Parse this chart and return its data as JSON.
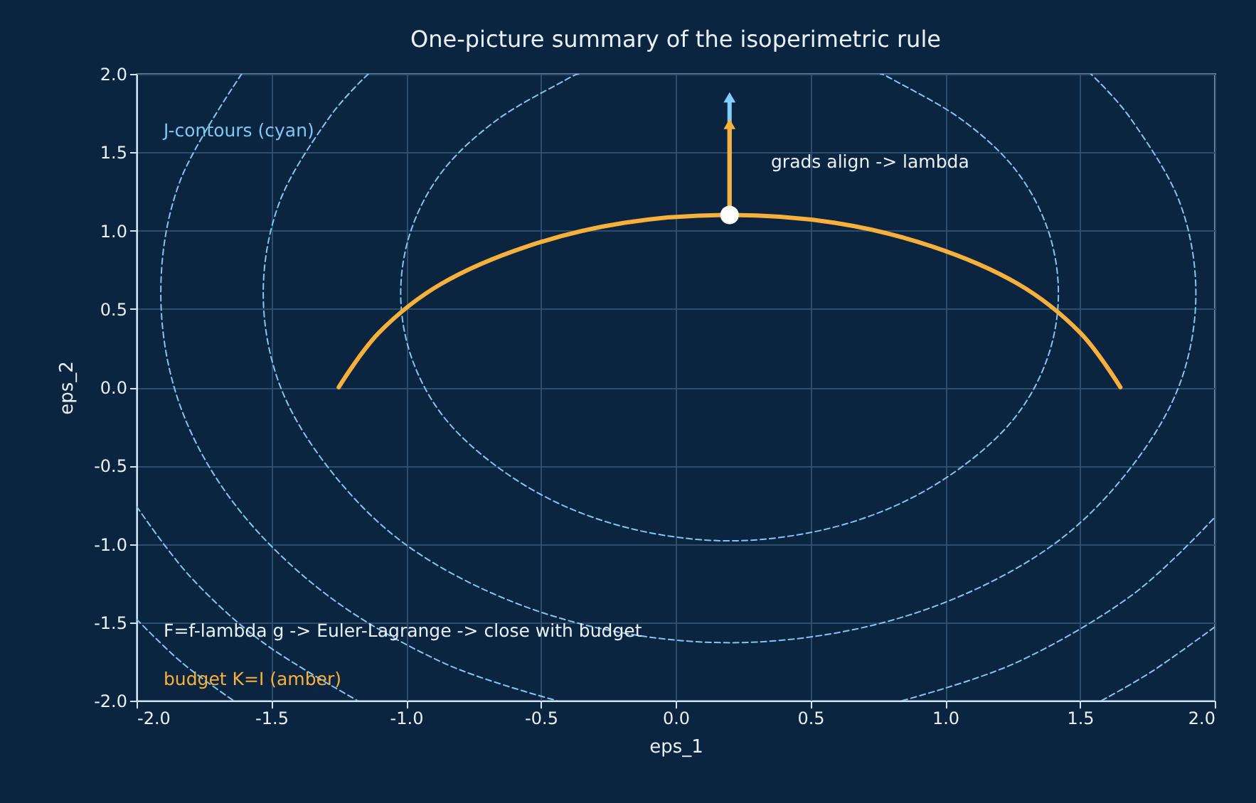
{
  "chart_data": {
    "type": "line",
    "title": "One-picture summary of the isoperimetric rule",
    "xlabel": "eps_1",
    "ylabel": "eps_2",
    "xlim": [
      -2,
      2
    ],
    "ylim": [
      -2,
      2
    ],
    "xticks": [
      {
        "value": -2,
        "label": "-2.0"
      },
      {
        "value": -1.5,
        "label": "-1.5"
      },
      {
        "value": -1,
        "label": "-1.0"
      },
      {
        "value": -0.5,
        "label": "-0.5"
      },
      {
        "value": 0,
        "label": "0.0"
      },
      {
        "value": 0.5,
        "label": "0.5"
      },
      {
        "value": 1,
        "label": "1.0"
      },
      {
        "value": 1.5,
        "label": "1.5"
      },
      {
        "value": 2,
        "label": "2.0"
      }
    ],
    "yticks": [
      {
        "value": -2,
        "label": "-2.0"
      },
      {
        "value": -1.5,
        "label": "-1.5"
      },
      {
        "value": -1,
        "label": "-1.0"
      },
      {
        "value": -0.5,
        "label": "-0.5"
      },
      {
        "value": 0,
        "label": "0.0"
      },
      {
        "value": 0.5,
        "label": "0.5"
      },
      {
        "value": 1,
        "label": "1.0"
      },
      {
        "value": 1.5,
        "label": "1.5"
      },
      {
        "value": 2,
        "label": "2.0"
      }
    ],
    "grid": true,
    "annotations": [
      "J-contours (cyan)",
      "grads align -> lambda",
      "F=f-lambda g  ->  Euler-Lagrange  ->  close with budget",
      "budget K=I (amber)"
    ],
    "series": [
      {
        "line_style": "dashed",
        "color": "#7ec8f2",
        "x": [
          -0.36,
          -0.41,
          -0.66,
          -0.86,
          -0.98,
          -1.02,
          -0.98,
          -0.86,
          -0.66,
          -0.41,
          -0.12,
          0.2,
          0.52,
          0.81,
          1.06,
          1.26,
          1.38,
          1.42,
          1.38,
          1.26,
          1.06,
          0.81,
          0.76
        ],
        "values": [
          2.0,
          1.96,
          1.71,
          1.39,
          1.01,
          0.6,
          0.19,
          -0.19,
          -0.51,
          -0.76,
          -0.92,
          -0.98,
          -0.92,
          -0.76,
          -0.51,
          -0.19,
          0.19,
          0.6,
          1.01,
          1.39,
          1.71,
          1.96,
          2.0
        ]
      },
      {
        "line_style": "dashed",
        "color": "#7ec8f2",
        "x": [
          -1.14,
          -1.29,
          -1.47,
          -1.53,
          -1.47,
          -1.29,
          -1.02,
          -0.66,
          -0.25,
          0.2,
          0.65,
          1.06,
          1.42,
          1.69,
          1.87,
          1.93,
          1.87,
          1.69,
          1.54
        ],
        "values": [
          2.0,
          1.71,
          1.18,
          0.6,
          0.02,
          -0.51,
          -0.98,
          -1.33,
          -1.55,
          -1.63,
          -1.55,
          -1.33,
          -0.98,
          -0.51,
          0.02,
          0.6,
          1.18,
          1.71,
          2.0
        ]
      },
      {
        "line_style": "dashed",
        "color": "#7ec8f2",
        "x": [
          -1.61,
          -1.84,
          -1.91,
          -1.84,
          -1.63,
          -1.29,
          -0.86,
          -0.44
        ],
        "values": [
          2.0,
          1.31,
          0.6,
          -0.11,
          -0.76,
          -1.33,
          -1.76,
          -2.0
        ]
      },
      {
        "line_style": "dashed",
        "color": "#7ec8f2",
        "x": [
          0.84,
          1.26,
          1.69,
          2.0
        ],
        "values": [
          -2.0,
          -1.76,
          -1.33,
          -0.83
        ]
      },
      {
        "line_style": "dashed",
        "color": "#7ec8f2",
        "x": [
          -2.0,
          -1.8,
          -1.53,
          -1.18
        ],
        "values": [
          -0.76,
          -1.21,
          -1.63,
          -2.0
        ]
      },
      {
        "line_style": "dashed",
        "color": "#7ec8f2",
        "x": [
          1.58,
          1.77,
          2.0
        ],
        "values": [
          -2.0,
          -1.81,
          -1.53
        ]
      },
      {
        "line_style": "dashed",
        "color": "#7ec8f2",
        "x": [
          -2.0,
          -1.83,
          -1.64
        ],
        "values": [
          -1.48,
          -1.76,
          -2.0
        ]
      },
      {
        "line_style": "solid",
        "color": "#f7b03c",
        "x": [
          -1.25,
          -1.1,
          -0.87,
          -0.55,
          -0.19,
          0.2,
          0.59,
          0.95,
          1.27,
          1.5,
          1.65
        ],
        "values": [
          0.0,
          0.35,
          0.66,
          0.9,
          1.05,
          1.1,
          1.05,
          0.9,
          0.66,
          0.35,
          0.0
        ]
      },
      {
        "line_style": "solid",
        "marker": "triangle",
        "color": "#80d0ff",
        "x": [
          0.2,
          0.2
        ],
        "values": [
          1.1,
          1.85
        ]
      },
      {
        "line_style": "solid",
        "marker": "triangle",
        "color": "#f7b03c",
        "x": [
          0.2,
          0.2
        ],
        "values": [
          1.1,
          1.68
        ]
      },
      {
        "type": "scatter",
        "marker": "circle",
        "color": "#ffffff",
        "x": [
          0.2
        ],
        "values": [
          1.1
        ]
      }
    ]
  }
}
